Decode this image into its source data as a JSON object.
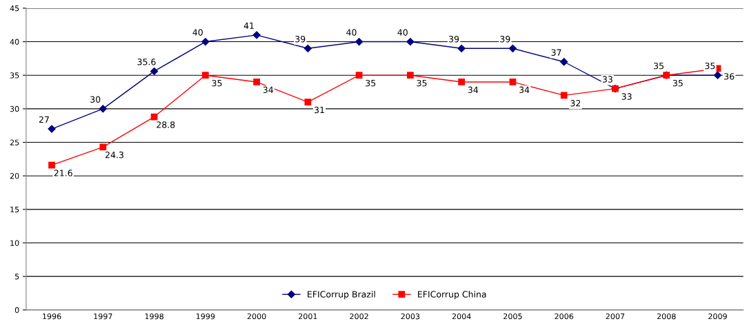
{
  "chart_data": {
    "type": "line",
    "categories": [
      "1996",
      "1997",
      "1998",
      "1999",
      "2000",
      "2001",
      "2002",
      "2003",
      "2004",
      "2005",
      "2006",
      "2007",
      "2008",
      "2009"
    ],
    "series": [
      {
        "name": "EFICorrup Brazil",
        "color": "#000080",
        "marker": "diamond",
        "values": [
          27,
          30,
          35.6,
          40,
          41,
          39,
          40,
          40,
          39,
          39,
          37,
          33,
          35,
          35
        ]
      },
      {
        "name": "EFICorrup China",
        "color": "#ff0000",
        "marker": "square",
        "values": [
          21.6,
          24.3,
          28.8,
          35,
          34,
          31,
          35,
          35,
          34,
          34,
          32,
          33,
          35,
          36
        ]
      }
    ],
    "ylim": [
      0,
      45
    ],
    "yticks": [
      0,
      5,
      10,
      15,
      20,
      25,
      30,
      35,
      40,
      45
    ],
    "grid": "y",
    "legend": "bottom",
    "data_labels": true
  }
}
